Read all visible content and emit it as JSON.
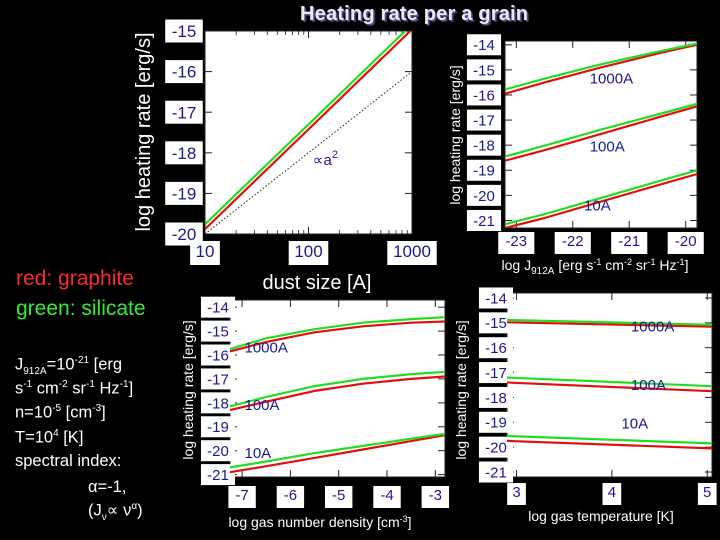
{
  "slide": {
    "title": "Heating rate per a grain",
    "legend": {
      "red": "red: graphite",
      "green": "green: silicate"
    },
    "params": [
      {
        "segments": [
          {
            "t": "J"
          },
          {
            "t": "912A",
            "sub": true
          },
          {
            "t": "=10"
          },
          {
            "t": "-21",
            "sup": true
          },
          {
            "t": " [erg"
          }
        ]
      },
      {
        "segments": [
          {
            "t": "s"
          },
          {
            "t": "-1",
            "sup": true
          },
          {
            "t": " cm"
          },
          {
            "t": "-2",
            "sup": true
          },
          {
            "t": " sr"
          },
          {
            "t": "-1",
            "sup": true
          },
          {
            "t": " Hz"
          },
          {
            "t": "-1",
            "sup": true
          },
          {
            "t": "]"
          }
        ]
      },
      {
        "segments": [
          {
            "t": "n=10"
          },
          {
            "t": "-5",
            "sup": true
          },
          {
            "t": " [cm"
          },
          {
            "t": "-3",
            "sup": true
          },
          {
            "t": "]"
          }
        ]
      },
      {
        "segments": [
          {
            "t": "T=10"
          },
          {
            "t": "4",
            "sup": true
          },
          {
            "t": " [K]"
          }
        ]
      },
      {
        "segments": [
          {
            "t": "spectral index:"
          }
        ]
      },
      {
        "segments": [
          {
            "t": "α=-1,"
          }
        ]
      },
      {
        "segments": [
          {
            "t": "(J"
          },
          {
            "t": "ν",
            "sub": true
          },
          {
            "t": "∝ ν"
          },
          {
            "t": "α",
            "sup": true
          },
          {
            "t": ")"
          }
        ]
      }
    ]
  },
  "colors": {
    "graphite": "#e01010",
    "silicate": "#22dd22",
    "axis_label": "#ffffff",
    "tick_label": "#1a1a90",
    "tick_bg": "#ffffff"
  },
  "chart_data": [
    {
      "id": "size",
      "type": "line",
      "x_scale": "log",
      "xlabel": "dust size [A]",
      "ylabel": "log heating rate [erg/s]",
      "xlim": [
        10,
        1000
      ],
      "ylim": [
        -20,
        -15
      ],
      "xticks": [
        {
          "v": 10,
          "label": "10"
        },
        {
          "v": 100,
          "label": "100"
        },
        {
          "v": 1000,
          "label": "1000"
        }
      ],
      "yticks": [
        {
          "v": -15,
          "label": "-15"
        },
        {
          "v": -16,
          "label": "-16"
        },
        {
          "v": -17,
          "label": "-17"
        },
        {
          "v": -18,
          "label": "-18"
        },
        {
          "v": -19,
          "label": "-19"
        },
        {
          "v": -20,
          "label": "-20"
        }
      ],
      "series": [
        {
          "material": "graphite",
          "x": [
            10,
            31.6,
            100,
            316,
            1000
          ],
          "y": [
            -19.88,
            -18.65,
            -17.42,
            -16.19,
            -14.96
          ]
        },
        {
          "material": "silicate",
          "x": [
            10,
            31.6,
            100,
            316,
            1000
          ],
          "y": [
            -19.76,
            -18.53,
            -17.3,
            -16.07,
            -14.84
          ]
        },
        {
          "material": "reference",
          "style": "dotted",
          "x": [
            10,
            1000
          ],
          "y": [
            -20.0,
            -16.0
          ]
        }
      ],
      "annotations": [
        {
          "text": "∝a",
          "sup": "2",
          "x": 110,
          "y": -18.3
        }
      ]
    },
    {
      "id": "J",
      "type": "line",
      "xlabel": "log J912A [erg s-1 cm-2 sr-1 Hz-1]",
      "ylabel": "log heating rate [erg/s]",
      "xlim": [
        -23.2,
        -19.8
      ],
      "ylim": [
        -21.3,
        -13.85
      ],
      "xticks": [
        {
          "v": -23,
          "label": "-23"
        },
        {
          "v": -22,
          "label": "-22"
        },
        {
          "v": -21,
          "label": "-21"
        },
        {
          "v": -20,
          "label": "-20"
        }
      ],
      "yticks": [
        {
          "v": -14,
          "label": "-14"
        },
        {
          "v": -15,
          "label": "-15"
        },
        {
          "v": -16,
          "label": "-16"
        },
        {
          "v": -17,
          "label": "-17"
        },
        {
          "v": -18,
          "label": "-18"
        },
        {
          "v": -19,
          "label": "-19"
        },
        {
          "v": -20,
          "label": "-20"
        },
        {
          "v": -21,
          "label": "-21"
        }
      ],
      "series": [
        {
          "material": "graphite",
          "size": "1000A",
          "x": [
            -23.2,
            -22.5,
            -21.5,
            -20.5,
            -19.8
          ],
          "y": [
            -15.95,
            -15.5,
            -14.9,
            -14.35,
            -14.0
          ]
        },
        {
          "material": "silicate",
          "size": "1000A",
          "x": [
            -23.2,
            -22.5,
            -21.5,
            -20.5,
            -19.8
          ],
          "y": [
            -15.78,
            -15.35,
            -14.78,
            -14.28,
            -13.95
          ]
        },
        {
          "material": "graphite",
          "size": "100A",
          "x": [
            -23.2,
            -22.5,
            -21.5,
            -20.5,
            -19.8
          ],
          "y": [
            -18.62,
            -18.2,
            -17.55,
            -16.9,
            -16.45
          ]
        },
        {
          "material": "silicate",
          "size": "100A",
          "x": [
            -23.2,
            -22.5,
            -21.5,
            -20.5,
            -19.8
          ],
          "y": [
            -18.45,
            -18.02,
            -17.38,
            -16.78,
            -16.35
          ]
        },
        {
          "material": "graphite",
          "size": "10A",
          "x": [
            -23.2,
            -22.5,
            -21.5,
            -20.5,
            -19.8
          ],
          "y": [
            -21.3,
            -20.9,
            -20.25,
            -19.6,
            -19.15
          ]
        },
        {
          "material": "silicate",
          "size": "10A",
          "x": [
            -23.2,
            -22.5,
            -21.5,
            -20.5,
            -19.8
          ],
          "y": [
            -21.15,
            -20.75,
            -20.1,
            -19.45,
            -19.0
          ]
        }
      ],
      "annotations": [
        {
          "text": "1000A",
          "x": -21.7,
          "y": -15.55
        },
        {
          "text": "100A",
          "x": -21.7,
          "y": -18.25
        },
        {
          "text": "10A",
          "x": -21.8,
          "y": -20.6
        }
      ]
    },
    {
      "id": "n",
      "type": "line",
      "xlabel": "log gas number density [cm-3]",
      "ylabel": "log heating rate [erg/s]",
      "xlim": [
        -7.25,
        -2.8
      ],
      "ylim": [
        -21.1,
        -13.7
      ],
      "xticks": [
        {
          "v": -7,
          "label": "-7"
        },
        {
          "v": -6,
          "label": "-6"
        },
        {
          "v": -5,
          "label": "-5"
        },
        {
          "v": -4,
          "label": "-4"
        },
        {
          "v": -3,
          "label": "-3"
        }
      ],
      "yticks": [
        {
          "v": -14,
          "label": "-14"
        },
        {
          "v": -15,
          "label": "-15"
        },
        {
          "v": -16,
          "label": "-16"
        },
        {
          "v": -17,
          "label": "-17"
        },
        {
          "v": -18,
          "label": "-18"
        },
        {
          "v": -19,
          "label": "-19"
        },
        {
          "v": -20,
          "label": "-20"
        },
        {
          "v": -21,
          "label": "-21"
        }
      ],
      "series": [
        {
          "material": "graphite",
          "size": "1000A",
          "x": [
            -7.25,
            -6.5,
            -5.5,
            -4.5,
            -3.5,
            -2.8
          ],
          "y": [
            -15.85,
            -15.45,
            -15.05,
            -14.8,
            -14.65,
            -14.6
          ]
        },
        {
          "material": "silicate",
          "size": "1000A",
          "x": [
            -7.25,
            -6.5,
            -5.5,
            -4.5,
            -3.5,
            -2.8
          ],
          "y": [
            -15.75,
            -15.3,
            -14.92,
            -14.65,
            -14.5,
            -14.42
          ]
        },
        {
          "material": "graphite",
          "size": "100A",
          "x": [
            -7.25,
            -6.5,
            -5.5,
            -4.5,
            -3.5,
            -2.8
          ],
          "y": [
            -18.3,
            -17.95,
            -17.5,
            -17.2,
            -17.0,
            -16.9
          ]
        },
        {
          "material": "silicate",
          "size": "100A",
          "x": [
            -7.25,
            -6.5,
            -5.5,
            -4.5,
            -3.5,
            -2.8
          ],
          "y": [
            -18.15,
            -17.75,
            -17.3,
            -17.0,
            -16.8,
            -16.7
          ]
        },
        {
          "material": "graphite",
          "size": "10A",
          "x": [
            -7.25,
            -6.5,
            -5.5,
            -4.5,
            -3.5,
            -2.8
          ],
          "y": [
            -20.9,
            -20.65,
            -20.3,
            -19.95,
            -19.6,
            -19.35
          ]
        },
        {
          "material": "silicate",
          "size": "10A",
          "x": [
            -7.25,
            -6.5,
            -5.5,
            -4.5,
            -3.5,
            -2.8
          ],
          "y": [
            -20.7,
            -20.45,
            -20.1,
            -19.8,
            -19.5,
            -19.3
          ]
        }
      ],
      "annotations": [
        {
          "text": "1000A",
          "x": -6.95,
          "y": -15.9
        },
        {
          "text": "100A",
          "x": -6.95,
          "y": -18.3
        },
        {
          "text": "10A",
          "x": -6.95,
          "y": -20.3
        }
      ]
    },
    {
      "id": "T",
      "type": "line",
      "xlabel": "log gas temperature [K]",
      "ylabel": "log heating rate [erg/s]",
      "xlim": [
        2.9,
        5.05
      ],
      "ylim": [
        -21.2,
        -13.8
      ],
      "xticks": [
        {
          "v": 3,
          "label": "3"
        },
        {
          "v": 4,
          "label": "4"
        },
        {
          "v": 5,
          "label": "5"
        }
      ],
      "yticks": [
        {
          "v": -14,
          "label": "-14"
        },
        {
          "v": -15,
          "label": "-15"
        },
        {
          "v": -16,
          "label": "-16"
        },
        {
          "v": -17,
          "label": "-17"
        },
        {
          "v": -18,
          "label": "-18"
        },
        {
          "v": -19,
          "label": "-19"
        },
        {
          "v": -20,
          "label": "-20"
        },
        {
          "v": -21,
          "label": "-21"
        }
      ],
      "series": [
        {
          "material": "graphite",
          "size": "1000A",
          "x": [
            2.9,
            5.05
          ],
          "y": [
            -14.98,
            -15.15
          ]
        },
        {
          "material": "silicate",
          "size": "1000A",
          "x": [
            2.9,
            5.05
          ],
          "y": [
            -14.88,
            -15.08
          ]
        },
        {
          "material": "graphite",
          "size": "100A",
          "x": [
            2.9,
            5.05
          ],
          "y": [
            -17.4,
            -17.75
          ]
        },
        {
          "material": "silicate",
          "size": "100A",
          "x": [
            2.9,
            5.05
          ],
          "y": [
            -17.2,
            -17.55
          ]
        },
        {
          "material": "graphite",
          "size": "10A",
          "x": [
            2.9,
            5.05
          ],
          "y": [
            -19.75,
            -20.05
          ]
        },
        {
          "material": "silicate",
          "size": "10A",
          "x": [
            2.9,
            5.05
          ],
          "y": [
            -19.55,
            -19.85
          ]
        }
      ],
      "annotations": [
        {
          "text": "1000A",
          "x": 4.2,
          "y": -15.35
        },
        {
          "text": "100A",
          "x": 4.2,
          "y": -17.7
        },
        {
          "text": "10A",
          "x": 4.1,
          "y": -19.25
        }
      ]
    }
  ]
}
